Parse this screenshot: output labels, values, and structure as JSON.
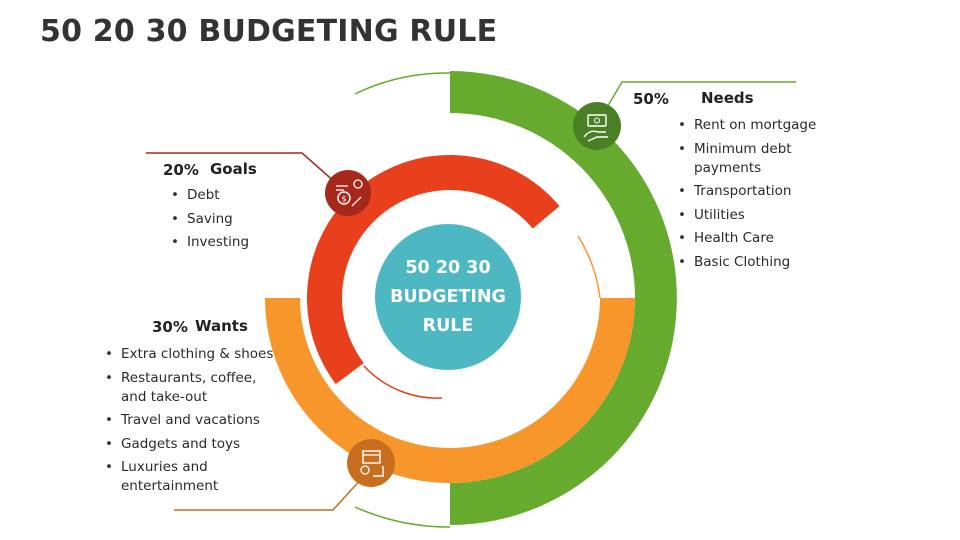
{
  "title": "50 20 30 BUDGETING RULE",
  "center": {
    "lines": [
      "50 20 30",
      "BUDGETING",
      "RULE"
    ],
    "color": "#4db8c2"
  },
  "needs": {
    "percent": "50%",
    "label": "Needs",
    "color": "#66aa2e",
    "icon": "money-hand-icon",
    "items": [
      "Rent on mortgage",
      "Minimum debt payments",
      "Transportation",
      "Utilities",
      "Health Care",
      "Basic Clothing"
    ]
  },
  "goals": {
    "percent": "20%",
    "label": "Goals",
    "color": "#e8401c",
    "icon": "savings-chart-icon",
    "items": [
      "Debt",
      "Saving",
      "Investing"
    ]
  },
  "wants": {
    "percent": "30%",
    "label": "Wants",
    "color": "#f7962b",
    "icon": "shopping-icon",
    "items": [
      "Extra clothing & shoes",
      "Restaurants, coffee, and take-out",
      "Travel and vacations",
      "Gadgets and toys",
      "Luxuries and entertainment"
    ]
  },
  "chart_data": {
    "type": "pie",
    "categories": [
      "Needs",
      "Wants",
      "Goals"
    ],
    "values": [
      50,
      30,
      20
    ],
    "title": "50 20 30 BUDGETING RULE"
  }
}
